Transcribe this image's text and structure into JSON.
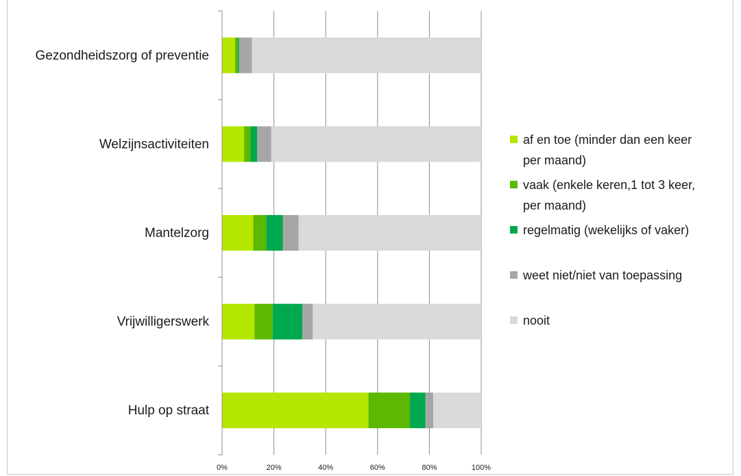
{
  "chart_data": {
    "type": "bar",
    "orientation": "horizontal",
    "stacked": true,
    "categories": [
      "Gezondheidszorg of preventie",
      "Welzijnsactiviteiten",
      "Mantelzorg",
      "Vrijwilligerswerk",
      "Hulp op straat"
    ],
    "series": [
      {
        "name": "af en toe (minder dan een keer per maand)",
        "name_lines": [
          "af en toe (minder dan een keer",
          "per maand)"
        ],
        "color": "#b4e600",
        "values": [
          5,
          8.5,
          12,
          12.5,
          56.5
        ]
      },
      {
        "name": "vaak (enkele keren,1 tot 3 keer, per maand)",
        "name_lines": [
          "vaak (enkele keren,1 tot 3 keer,",
          "per maand)"
        ],
        "color": "#5cb800",
        "values": [
          1,
          2.5,
          5,
          7,
          16
        ]
      },
      {
        "name": "regelmatig (wekelijks of vaker)",
        "name_lines": [
          "regelmatig (wekelijks of vaker)"
        ],
        "color": "#00a84f",
        "values": [
          0.5,
          2.5,
          6.5,
          11.5,
          6
        ]
      },
      {
        "name": "weet niet/niet van toepassing",
        "name_lines": [
          "weet niet/niet van toepassing"
        ],
        "color": "#a6a6a6",
        "values": [
          5,
          5.5,
          6,
          4,
          3
        ]
      },
      {
        "name": "nooit",
        "name_lines": [
          "nooit"
        ],
        "color": "#d9d9d9",
        "values": [
          88.5,
          81,
          70.5,
          65,
          18.5
        ]
      }
    ],
    "xlim": [
      0,
      100
    ],
    "x_ticks": [
      "0%",
      "20%",
      "40%",
      "60%",
      "80%",
      "100%"
    ],
    "grid": true,
    "legend_position": "right"
  }
}
